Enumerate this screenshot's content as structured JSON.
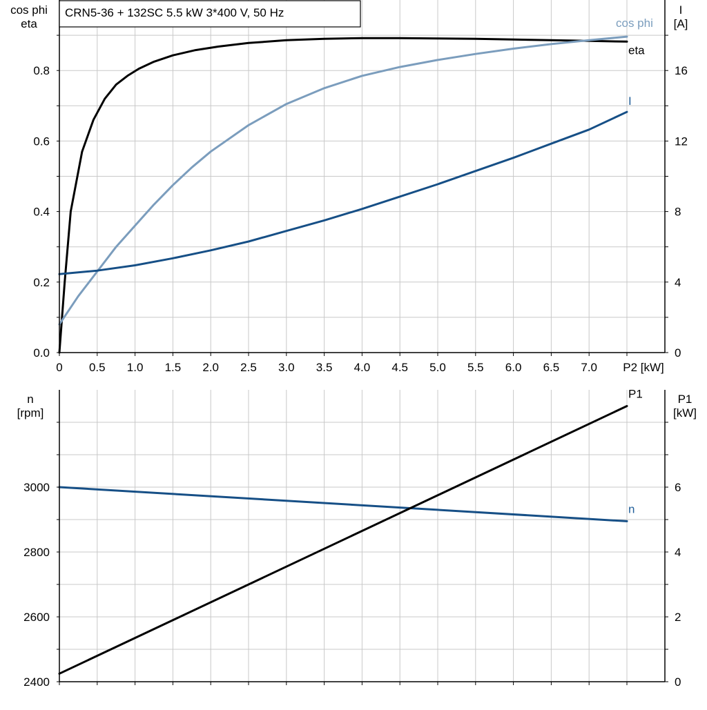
{
  "title": "CRN5-36 + 132SC   5.5 kW   3*400 V, 50 Hz",
  "colors": {
    "eta": "#000000",
    "cosphi": "#7b9dbd",
    "current": "#164f86",
    "speed": "#164f86",
    "p1": "#000000",
    "grid": "#c8c8c8"
  },
  "chart_data": [
    {
      "type": "line",
      "title": "CRN5-36 + 132SC   5.5 kW   3*400 V, 50 Hz",
      "xlabel": "P2 [kW]",
      "x_ticks": [
        "0",
        "0.5",
        "1.0",
        "1.5",
        "2.0",
        "2.5",
        "3.0",
        "3.5",
        "4.0",
        "4.5",
        "5.0",
        "5.5",
        "6.0",
        "6.5",
        "7.0",
        "P2 [kW]"
      ],
      "xlim": [
        0,
        7.5
      ],
      "ylabel_left": [
        "cos phi",
        "eta"
      ],
      "ylim_left": [
        0,
        1.0
      ],
      "y_ticks_left": [
        "0.0",
        "0.2",
        "0.4",
        "0.6",
        "0.8"
      ],
      "ylabel_right": [
        "I",
        "[A]"
      ],
      "ylim_right": [
        0,
        20
      ],
      "y_ticks_right": [
        "0",
        "4",
        "8",
        "12",
        "16"
      ],
      "grid": true,
      "series": [
        {
          "name": "eta",
          "axis": "left",
          "color": "#000000",
          "x": [
            0,
            0.07,
            0.15,
            0.3,
            0.45,
            0.6,
            0.75,
            0.9,
            1.05,
            1.25,
            1.5,
            1.8,
            2.1,
            2.5,
            3.0,
            3.5,
            4.0,
            4.5,
            5.0,
            5.5,
            6.0,
            6.5,
            7.0,
            7.5
          ],
          "y": [
            0.0,
            0.2,
            0.4,
            0.57,
            0.66,
            0.72,
            0.76,
            0.785,
            0.805,
            0.825,
            0.843,
            0.858,
            0.868,
            0.878,
            0.886,
            0.89,
            0.892,
            0.892,
            0.891,
            0.89,
            0.888,
            0.886,
            0.884,
            0.882
          ]
        },
        {
          "name": "cos phi",
          "axis": "left",
          "color": "#7b9dbd",
          "x": [
            0,
            0.25,
            0.5,
            0.75,
            1.0,
            1.25,
            1.5,
            1.75,
            2.0,
            2.5,
            3.0,
            3.5,
            4.0,
            4.5,
            5.0,
            5.5,
            6.0,
            6.5,
            7.0,
            7.5
          ],
          "y": [
            0.08,
            0.16,
            0.23,
            0.3,
            0.36,
            0.42,
            0.475,
            0.525,
            0.57,
            0.645,
            0.705,
            0.75,
            0.785,
            0.81,
            0.83,
            0.847,
            0.862,
            0.875,
            0.886,
            0.896
          ]
        },
        {
          "name": "I",
          "axis": "right",
          "color": "#164f86",
          "x": [
            0,
            0.5,
            1.0,
            1.5,
            2.0,
            2.5,
            3.0,
            3.5,
            4.0,
            4.5,
            5.0,
            5.5,
            6.0,
            6.5,
            7.0,
            7.5
          ],
          "y": [
            4.45,
            4.65,
            4.95,
            5.35,
            5.8,
            6.3,
            6.9,
            7.5,
            8.15,
            8.85,
            9.55,
            10.3,
            11.05,
            11.85,
            12.65,
            13.65
          ]
        }
      ]
    },
    {
      "type": "line",
      "xlim": [
        0,
        7.5
      ],
      "ylabel_left": [
        "n",
        "[rpm]"
      ],
      "ylim_left": [
        2400,
        3300
      ],
      "y_ticks_left": [
        "2400",
        "2600",
        "2800",
        "3000"
      ],
      "ylabel_right": [
        "P1",
        "[kW]"
      ],
      "ylim_right": [
        0,
        9
      ],
      "y_ticks_right": [
        "0",
        "2",
        "4",
        "6"
      ],
      "grid": true,
      "series": [
        {
          "name": "n",
          "axis": "left",
          "color": "#164f86",
          "x": [
            0,
            7.5
          ],
          "y": [
            3000,
            2895
          ]
        },
        {
          "name": "P1",
          "axis": "right",
          "color": "#000000",
          "x": [
            0,
            7.5
          ],
          "y": [
            0.25,
            8.5
          ]
        }
      ]
    }
  ]
}
